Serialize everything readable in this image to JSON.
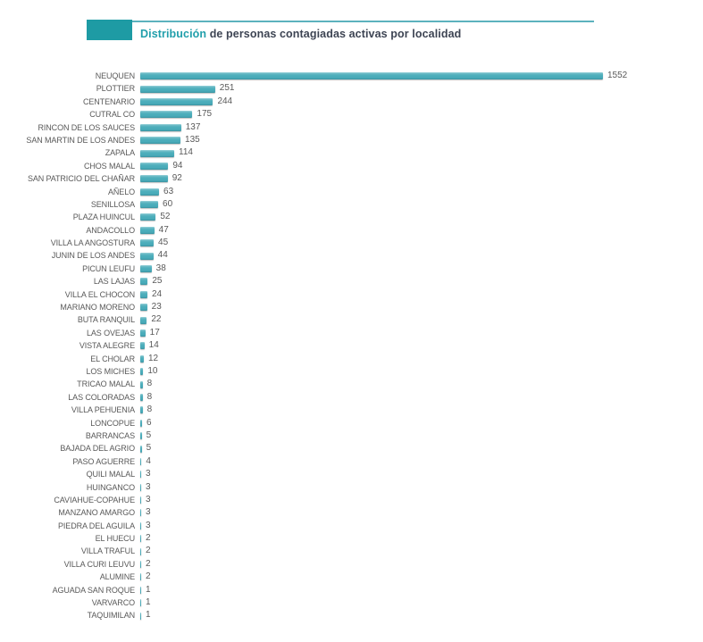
{
  "header": {
    "title_highlight": "Distribución",
    "title_rest": " de personas contagiadas activas por localidad"
  },
  "colors": {
    "accent_teal": "#1e9ba4",
    "header_line": "#5cb2bd",
    "bar_fill": "#4caebb",
    "bar_top_highlight": "#9ad3da",
    "bar_bottom_shade": "#39919f",
    "title_highlight_text": "#219fab",
    "title_dark_text": "#3d4453",
    "label_text": "#595959"
  },
  "chart_data": {
    "type": "bar",
    "orientation": "horizontal",
    "title": "Distribución de personas contagiadas activas por localidad",
    "xlabel": "",
    "ylabel": "",
    "xlim": [
      0,
      1552
    ],
    "grid": false,
    "legend": false,
    "value_labels": "outside-end",
    "categories": [
      "NEUQUEN",
      "PLOTTIER",
      "CENTENARIO",
      "CUTRAL CO",
      "RINCON DE LOS SAUCES",
      "SAN MARTIN DE LOS ANDES",
      "ZAPALA",
      "CHOS MALAL",
      "SAN PATRICIO DEL CHAÑAR",
      "AÑELO",
      "SENILLOSA",
      "PLAZA HUINCUL",
      "ANDACOLLO",
      "VILLA LA ANGOSTURA",
      "JUNIN DE LOS ANDES",
      "PICUN LEUFU",
      "LAS LAJAS",
      "VILLA EL CHOCON",
      "MARIANO MORENO",
      "BUTA RANQUIL",
      "LAS OVEJAS",
      "VISTA ALEGRE",
      "EL CHOLAR",
      "LOS MICHES",
      "TRICAO MALAL",
      "LAS COLORADAS",
      "VILLA PEHUENIA",
      "LONCOPUE",
      "BARRANCAS",
      "BAJADA DEL AGRIO",
      "PASO AGUERRE",
      "QUILI MALAL",
      "HUINGANCO",
      "CAVIAHUE-COPAHUE",
      "MANZANO AMARGO",
      "PIEDRA DEL AGUILA",
      "EL HUECU",
      "VILLA TRAFUL",
      "VILLA CURI LEUVU",
      "ALUMINE",
      "AGUADA SAN ROQUE",
      "VARVARCO",
      "TAQUIMILAN"
    ],
    "values": [
      1552,
      251,
      244,
      175,
      137,
      135,
      114,
      94,
      92,
      63,
      60,
      52,
      47,
      45,
      44,
      38,
      25,
      24,
      23,
      22,
      17,
      14,
      12,
      10,
      8,
      8,
      8,
      6,
      5,
      5,
      4,
      3,
      3,
      3,
      3,
      3,
      2,
      2,
      2,
      2,
      1,
      1,
      1
    ]
  }
}
